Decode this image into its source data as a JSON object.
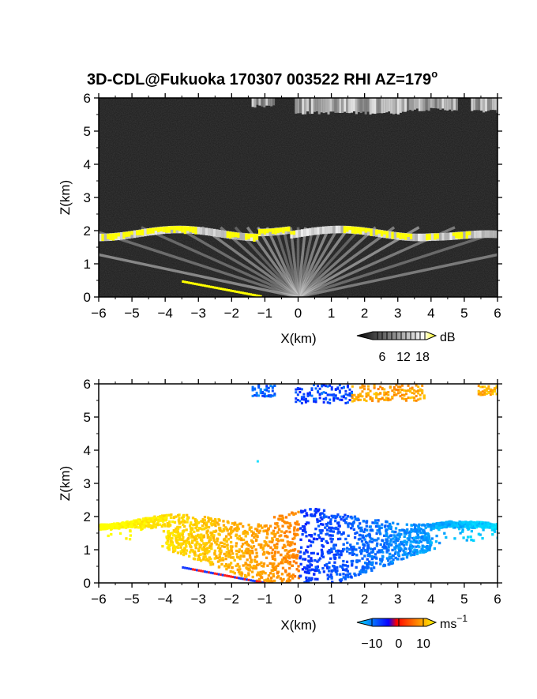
{
  "title": "3D-CDL@Fukuoka 170307 003522 RHI AZ=179",
  "title_superscript": "o",
  "chart_data": [
    {
      "type": "heatmap",
      "name": "reflectivity-panel",
      "xlabel": "X(km)",
      "ylabel": "Z(km)",
      "xlim": [
        -6,
        6
      ],
      "ylim": [
        0,
        6
      ],
      "xticks": [
        "−6",
        "−5",
        "−4",
        "−3",
        "−2",
        "−1",
        "0",
        "1",
        "2",
        "3",
        "4",
        "5",
        "6"
      ],
      "yticks": [
        "0",
        "1",
        "2",
        "3",
        "4",
        "5",
        "6"
      ],
      "colorbar": {
        "unit": "dB",
        "ticks": [
          "6",
          "12",
          "18"
        ],
        "range": [
          0,
          20
        ],
        "colors": [
          "#000000",
          "#ffffff",
          "#ffff00"
        ]
      },
      "features": [
        {
          "label": "cloud-layer-high",
          "x_range": [
            -1.3,
            6
          ],
          "z_range": [
            5.45,
            6.0
          ]
        },
        {
          "label": "aerosol-layer-top",
          "x_range": [
            -6,
            6
          ],
          "z_range": [
            1.85,
            2.3
          ],
          "strong_echo_color": "#ffff00"
        },
        {
          "label": "ground-clutter",
          "x_range": [
            -3.5,
            -1.1
          ],
          "z_range": [
            0,
            0.5
          ]
        }
      ]
    },
    {
      "type": "heatmap",
      "name": "doppler-velocity-panel",
      "xlabel": "X(km)",
      "ylabel": "Z(km)",
      "xlim": [
        -6,
        6
      ],
      "ylim": [
        0,
        6
      ],
      "xticks": [
        "−6",
        "−5",
        "−4",
        "−3",
        "−2",
        "−1",
        "0",
        "1",
        "2",
        "3",
        "4",
        "5",
        "6"
      ],
      "yticks": [
        "0",
        "1",
        "2",
        "3",
        "4",
        "5",
        "6"
      ],
      "colorbar": {
        "unit": "ms",
        "unit_exponent": "−1",
        "ticks": [
          "−10",
          "0",
          "10"
        ],
        "range": [
          -15,
          15
        ],
        "colors": [
          "#00e5ff",
          "#0a00ff",
          "#ff0000",
          "#ffff00"
        ]
      },
      "features": [
        {
          "label": "negative-x-side",
          "sign": "positive velocity",
          "color": "orange-yellow"
        },
        {
          "label": "positive-x-side",
          "sign": "negative velocity",
          "color": "blue-cyan"
        },
        {
          "label": "upper-cloud-echo",
          "z_range": [
            5.3,
            6.0
          ]
        }
      ]
    }
  ],
  "colors": {
    "panel1_background": "#1c1c1c",
    "yellow_echo": "#ffff00",
    "velocity_positive": "#ff5a00",
    "velocity_negative": "#1a3cff"
  }
}
